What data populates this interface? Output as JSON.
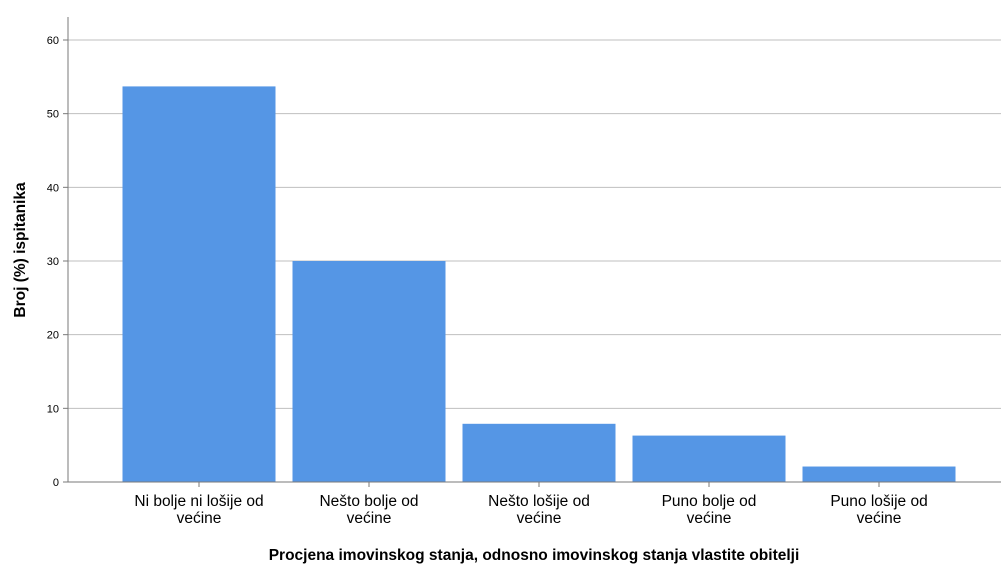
{
  "chart_data": {
    "type": "bar",
    "categories": [
      [
        "Ni bolje ni lošije od",
        "većine"
      ],
      [
        "Nešto bolje od",
        "većine"
      ],
      [
        "Nešto lošije od",
        "većine"
      ],
      [
        "Puno bolje od",
        "većine"
      ],
      [
        "Puno lošije od",
        "većine"
      ]
    ],
    "values": [
      53.7,
      30.0,
      7.9,
      6.3,
      2.1
    ],
    "xlabel": "Procjena imovinskog stanja, odnosno imovinskog stanja vlastite obitelji",
    "ylabel": "Broj (%) ispitanika",
    "ylim": [
      0,
      60
    ],
    "yticks": [
      0,
      10,
      20,
      30,
      40,
      50,
      60
    ],
    "grid": true,
    "bar_color": "#5596e5",
    "grid_color": "#bfbfbf",
    "axis_color": "#7a7a7a"
  }
}
